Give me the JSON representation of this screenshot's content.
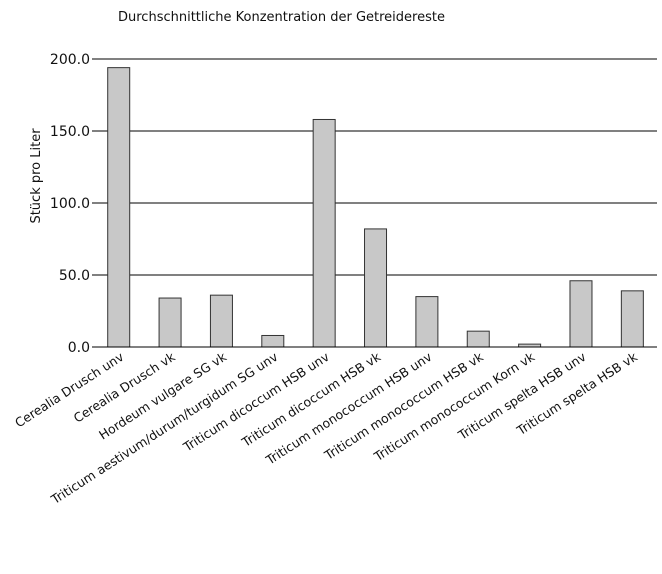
{
  "chart_data": {
    "type": "bar",
    "title": "Durchschnittliche Konzentration der Getreidereste",
    "ylabel": "Stück pro Liter",
    "xlabel": "",
    "ylim": [
      0,
      200
    ],
    "yticks": [
      "0.0",
      "50.0",
      "100.0",
      "150.0",
      "200.0"
    ],
    "grid": true,
    "categories": [
      "Cerealia  Drusch unv",
      "Cerealia  Drusch vk",
      "Hordeum vulgare SG vk",
      "Triticum aestivum/durum/turgidum SG unv",
      "Triticum dicoccum HSB unv",
      "Triticum dicoccum HSB vk",
      "Triticum monococcum HSB unv",
      "Triticum monococcum HSB vk",
      "Triticum monococcum Korn vk",
      "Triticum spelta  HSB unv",
      "Triticum spelta  HSB vk"
    ],
    "values": [
      194,
      34,
      36,
      8,
      158,
      82,
      35,
      11,
      2,
      46,
      39
    ],
    "bar_color": "#c8c8c8"
  }
}
